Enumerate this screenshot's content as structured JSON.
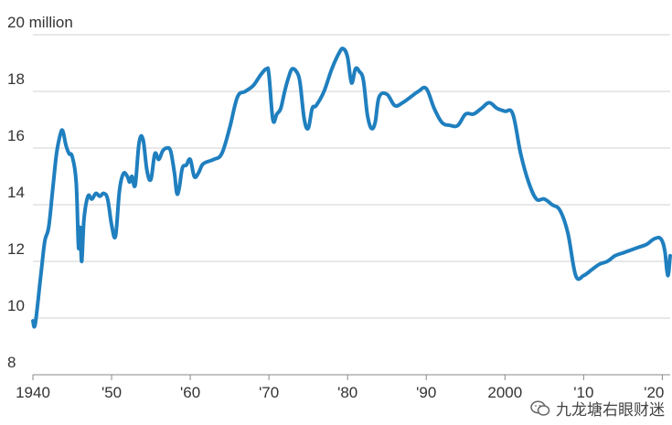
{
  "chart_data": {
    "type": "line",
    "title": "",
    "xlabel": "",
    "ylabel": "",
    "y_unit_label": "20 million",
    "xlim": [
      1940,
      2021
    ],
    "ylim": [
      8,
      20
    ],
    "grid": true,
    "line_color": "#1f7fbf",
    "x_ticks": [
      {
        "value": 1940,
        "label": "1940"
      },
      {
        "value": 1950,
        "label": "'50"
      },
      {
        "value": 1960,
        "label": "'60"
      },
      {
        "value": 1970,
        "label": "'70"
      },
      {
        "value": 1980,
        "label": "'80"
      },
      {
        "value": 1990,
        "label": "'90"
      },
      {
        "value": 2000,
        "label": "2000"
      },
      {
        "value": 2010,
        "label": "'10"
      },
      {
        "value": 2020,
        "label": "'20"
      }
    ],
    "y_ticks": [
      {
        "value": 20,
        "label": "20 million"
      },
      {
        "value": 18,
        "label": "18"
      },
      {
        "value": 16,
        "label": "16"
      },
      {
        "value": 14,
        "label": "14"
      },
      {
        "value": 12,
        "label": "12"
      },
      {
        "value": 10,
        "label": "10"
      },
      {
        "value": 8,
        "label": "8"
      }
    ],
    "series": [
      {
        "x": [
          1940.0,
          1940.3,
          1941,
          1941.5,
          1942,
          1942.5,
          1943,
          1943.5,
          1943.8,
          1944.2,
          1944.6,
          1945,
          1945.5,
          1945.8,
          1946.0,
          1946.2,
          1946.5,
          1947,
          1947.5,
          1948,
          1948.5,
          1949,
          1949.5,
          1950,
          1950.5,
          1951,
          1951.5,
          1952,
          1952.3,
          1952.6,
          1953,
          1953.5,
          1954,
          1954.5,
          1955,
          1955.5,
          1956,
          1956.5,
          1957,
          1957.5,
          1958,
          1958.3,
          1958.6,
          1959,
          1959.5,
          1960,
          1960.5,
          1961,
          1961.5,
          1962,
          1963,
          1964,
          1965,
          1966,
          1967,
          1968,
          1969,
          1969.7,
          1970,
          1970.5,
          1971,
          1971.5,
          1972,
          1972.5,
          1973,
          1973.7,
          1974,
          1974.5,
          1975,
          1975.5,
          1976,
          1977,
          1978,
          1979,
          1979.5,
          1980,
          1980.5,
          1981,
          1981.5,
          1982,
          1982.5,
          1983,
          1983.5,
          1984,
          1985,
          1986,
          1987,
          1988,
          1989,
          1990,
          1991,
          1992,
          1993,
          1994,
          1995,
          1996,
          1997,
          1998,
          1999,
          2000,
          2001,
          2002,
          2003,
          2004,
          2005,
          2006,
          2007,
          2008,
          2009,
          2010,
          2011,
          2012,
          2013,
          2014,
          2015,
          2016,
          2017,
          2018,
          2019,
          2019.8,
          2020.3,
          2020.7,
          2021.0
        ],
        "values": [
          9.9,
          9.8,
          11.5,
          12.7,
          13.2,
          14.5,
          15.8,
          16.5,
          16.6,
          16.1,
          15.8,
          15.7,
          14.8,
          12.5,
          13.2,
          12.0,
          13.5,
          14.3,
          14.2,
          14.4,
          14.3,
          14.4,
          14.2,
          13.3,
          12.9,
          14.5,
          15.1,
          15.0,
          14.8,
          15.0,
          14.7,
          16.2,
          16.3,
          15.2,
          14.9,
          15.8,
          15.6,
          15.9,
          16.0,
          15.9,
          15.1,
          14.4,
          14.6,
          15.3,
          15.4,
          15.6,
          15.0,
          15.1,
          15.4,
          15.5,
          15.6,
          15.8,
          16.7,
          17.8,
          18.0,
          18.2,
          18.6,
          18.8,
          18.6,
          17.0,
          17.2,
          17.4,
          18.0,
          18.5,
          18.8,
          18.6,
          18.2,
          17.0,
          16.7,
          17.4,
          17.5,
          18.0,
          18.8,
          19.4,
          19.5,
          19.2,
          18.3,
          18.8,
          18.7,
          18.4,
          17.2,
          16.7,
          16.9,
          17.8,
          17.9,
          17.5,
          17.6,
          17.8,
          18.0,
          18.1,
          17.4,
          16.9,
          16.8,
          16.8,
          17.2,
          17.2,
          17.4,
          17.6,
          17.4,
          17.3,
          17.2,
          15.8,
          14.8,
          14.2,
          14.2,
          14.0,
          13.8,
          13.0,
          11.5,
          11.5,
          11.7,
          11.9,
          12.0,
          12.2,
          12.3,
          12.4,
          12.5,
          12.6,
          12.8,
          12.8,
          12.4,
          11.5,
          12.2
        ]
      }
    ]
  },
  "watermark": {
    "text": "九龙塘右眼财迷",
    "icon": "wechat-icon"
  }
}
